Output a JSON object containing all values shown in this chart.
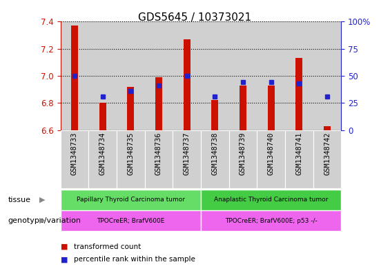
{
  "title": "GDS5645 / 10373021",
  "samples": [
    "GSM1348733",
    "GSM1348734",
    "GSM1348735",
    "GSM1348736",
    "GSM1348737",
    "GSM1348738",
    "GSM1348739",
    "GSM1348740",
    "GSM1348741",
    "GSM1348742"
  ],
  "transformed_count": [
    7.37,
    6.8,
    6.92,
    6.99,
    7.27,
    6.82,
    6.93,
    6.93,
    7.13,
    6.63
  ],
  "percentile_rank": [
    50,
    31,
    36,
    41,
    50,
    31,
    44,
    44,
    43,
    31
  ],
  "ylim_left": [
    6.6,
    7.4
  ],
  "ylim_right": [
    0,
    100
  ],
  "yticks_left": [
    6.6,
    6.8,
    7.0,
    7.2,
    7.4
  ],
  "yticks_right": [
    0,
    25,
    50,
    75,
    100
  ],
  "ytick_right_labels": [
    "0",
    "25",
    "50",
    "75",
    "100%"
  ],
  "bar_color": "#cc1100",
  "dot_color": "#2222cc",
  "tissue_groups": [
    {
      "label": "Papillary Thyroid Carcinoma tumor",
      "start": 0,
      "end": 5,
      "color": "#66dd66"
    },
    {
      "label": "Anaplastic Thyroid Carcinoma tumor",
      "start": 5,
      "end": 10,
      "color": "#44cc44"
    }
  ],
  "genotype_groups": [
    {
      "label": "TPOCreER; BrafV600E",
      "start": 0,
      "end": 5,
      "color": "#ee66ee"
    },
    {
      "label": "TPOCreER; BrafV600E; p53 -/-",
      "start": 5,
      "end": 10,
      "color": "#ee66ee"
    }
  ],
  "legend_items": [
    {
      "color": "#cc1100",
      "label": "transformed count"
    },
    {
      "color": "#2222cc",
      "label": "percentile rank within the sample"
    }
  ],
  "tissue_label": "tissue",
  "genotype_label": "genotype/variation",
  "bar_baseline": 6.6,
  "bar_width": 0.25,
  "col_bg_color": "#d0d0d0",
  "plot_bg_color": "#ffffff",
  "title_fontsize": 11,
  "axis_fontsize": 9,
  "tick_fontsize": 8.5,
  "sample_fontsize": 7.5
}
